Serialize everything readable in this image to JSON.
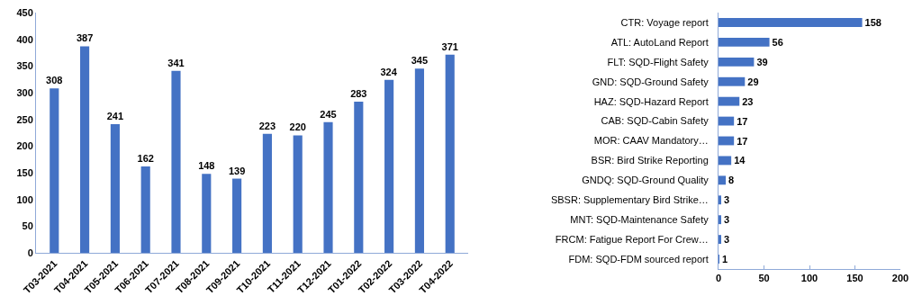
{
  "chart_data": [
    {
      "type": "bar",
      "categories": [
        "T03-2021",
        "T04-2021",
        "T05-2021",
        "T06-2021",
        "T07-2021",
        "T08-2021",
        "T09-2021",
        "T10-2021",
        "T11-2021",
        "T12-2021",
        "T01-2022",
        "T02-2022",
        "T03-2022",
        "T04-2022"
      ],
      "values": [
        308,
        387,
        241,
        162,
        341,
        148,
        139,
        223,
        220,
        245,
        283,
        324,
        345,
        371
      ],
      "color": "#4472c4",
      "ylim": [
        0,
        450
      ],
      "yticks": [
        0,
        50,
        100,
        150,
        200,
        250,
        300,
        350,
        400,
        450
      ],
      "grid": false,
      "data_labels": true
    },
    {
      "type": "bar",
      "orientation": "horizontal",
      "categories": [
        "CTR: Voyage report",
        "ATL: AutoLand Report",
        "FLT: SQD-Flight Safety",
        "GND: SQD-Ground Safety",
        "HAZ: SQD-Hazard Report",
        "CAB: SQD-Cabin Safety",
        "MOR: CAAV Mandatory…",
        "BSR: Bird Strike Reporting",
        "GNDQ: SQD-Ground Quality",
        "SBSR: Supplementary Bird Strike…",
        "MNT: SQD-Maintenance Safety",
        "FRCM: Fatigue Report For Crew…",
        "FDM: SQD-FDM sourced report"
      ],
      "values": [
        158,
        56,
        39,
        29,
        23,
        17,
        17,
        14,
        8,
        3,
        3,
        3,
        1
      ],
      "color": "#4472c4",
      "xlim": [
        0,
        200
      ],
      "xticks": [
        0,
        50,
        100,
        150,
        200
      ],
      "grid": false,
      "data_labels": true
    }
  ]
}
